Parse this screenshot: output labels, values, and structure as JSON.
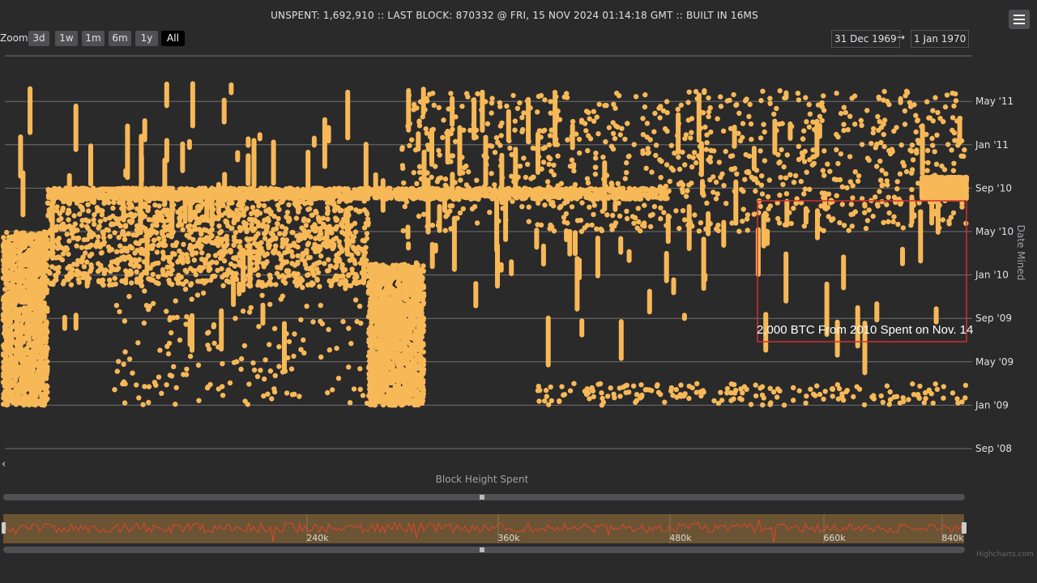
{
  "header": {
    "status": "UNSPENT: 1,692,910 :: LAST BLOCK: 870332 @ FRI, 15 NOV 2024 01:14:18 GMT :: BUILT IN 16MS"
  },
  "toolbar": {
    "zoom_label": "Zoom",
    "zoom_buttons": [
      "3d",
      "1w",
      "1m",
      "6m",
      "1y",
      "All"
    ],
    "active_zoom": "All",
    "from_date": "31 Dec 1969",
    "arrow": "→",
    "to_date": "1 Jan 1970",
    "menu_icon": "hamburger-menu-icon"
  },
  "annotation": {
    "text": "2,000 BTC From 2010 Spent on Nov. 14",
    "color": "#d32f2f"
  },
  "credits": "Highcharts.com",
  "colors": {
    "background": "#2a2a2b",
    "points": "#f7b857",
    "navigator_line": "#e0452f",
    "navigator_fill": "#6b5433"
  },
  "chart_data": {
    "type": "scatter",
    "title": "",
    "xlabel": "Block Height Spent",
    "ylabel": "Date Mined",
    "y_axis_position": "right",
    "y_ticks": [
      "Sep '08",
      "Jan '09",
      "May '09",
      "Sep '09",
      "Jan '10",
      "May '10",
      "Sep '10",
      "Jan '11",
      "May '11"
    ],
    "xlim": [
      0,
      870332
    ],
    "ylim": [
      "2008-09",
      "2011-07"
    ],
    "navigator_ticks": [
      "240k",
      "360k",
      "480k",
      "660k",
      "840k"
    ],
    "grid": true,
    "series": [
      {
        "clusters": [
          {
            "x": [
              0,
              40000
            ],
            "y": [
              "2009-01",
              "2010-05"
            ],
            "density": "high"
          },
          {
            "x": [
              40000,
              330000
            ],
            "y": [
              "2009-12",
              "2010-09"
            ],
            "density": "high"
          },
          {
            "x": [
              330000,
              380000
            ],
            "y": [
              "2009-01",
              "2010-02"
            ],
            "density": "very high"
          },
          {
            "x": [
              40000,
              600000
            ],
            "y": [
              "2010-08",
              "2010-09"
            ],
            "density": "band"
          },
          {
            "x": [
              360000,
              870000
            ],
            "y": [
              "2010-05",
              "2011-06"
            ],
            "density": "medium"
          },
          {
            "x": [
              830000,
              870332
            ],
            "y": [
              "2010-08",
              "2010-10"
            ],
            "density": "high"
          },
          {
            "x": [
              100000,
              360000
            ],
            "y": [
              "2009-01",
              "2009-12"
            ],
            "density": "low"
          },
          {
            "x": [
              480000,
              870000
            ],
            "y": [
              "2009-01",
              "2009-03"
            ],
            "density": "low"
          }
        ]
      }
    ]
  }
}
